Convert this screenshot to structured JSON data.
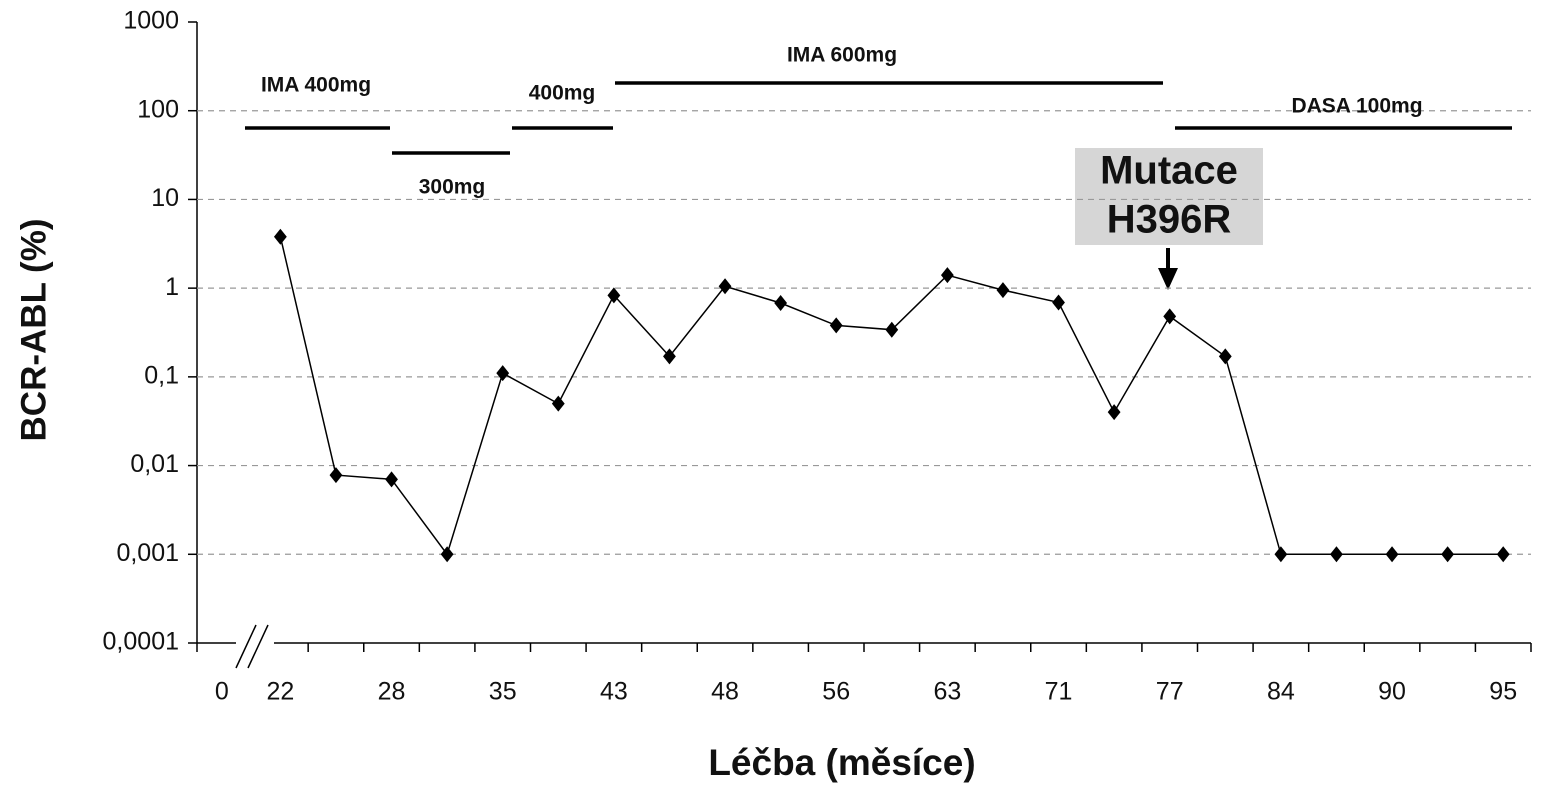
{
  "chart_data": {
    "type": "line",
    "x_label": "Léčba (měsíce)",
    "y_label": "BCR-ABL (%)",
    "categories": [
      "0",
      "22",
      null,
      "28",
      null,
      "35",
      null,
      "43",
      null,
      "48",
      null,
      "56",
      null,
      "63",
      null,
      "71",
      null,
      "77",
      null,
      "84",
      null,
      "90",
      null,
      "95"
    ],
    "series": [
      {
        "name": "BCR-ABL",
        "color": "#000000",
        "values": [
          null,
          3.8,
          0.0078,
          0.007,
          0.001,
          0.11,
          0.05,
          0.83,
          0.17,
          1.05,
          0.68,
          0.38,
          0.34,
          1.4,
          0.95,
          0.69,
          0.04,
          0.48,
          0.17,
          0.001,
          0.001,
          0.001,
          0.001,
          0.001
        ]
      }
    ],
    "log_scale": true,
    "ylim": [
      0.0001,
      1000
    ],
    "yticks": [
      {
        "value": 0.0001,
        "label": "0,0001"
      },
      {
        "value": 0.001,
        "label": "0,001"
      },
      {
        "value": 0.01,
        "label": "0,01"
      },
      {
        "value": 0.1,
        "label": "0,1"
      },
      1,
      10,
      100,
      1000
    ],
    "grid": true,
    "annotations": [
      "IMA 400mg",
      "300mg",
      "400mg",
      "IMA 600mg",
      "DASA 100mg"
    ],
    "callout": [
      "Mutace",
      "H396R"
    ]
  }
}
